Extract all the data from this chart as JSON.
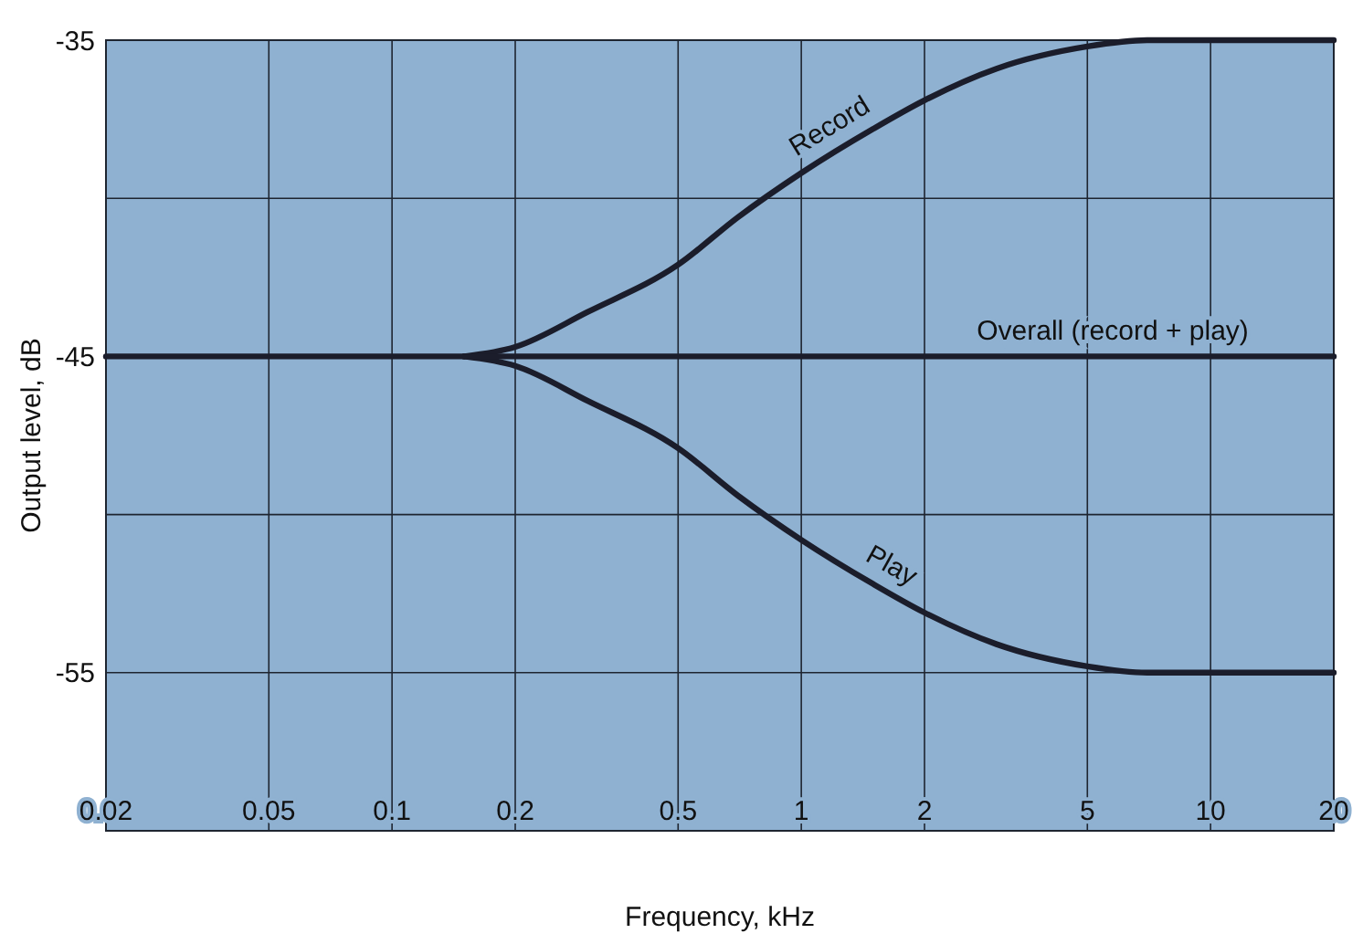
{
  "chart_data": {
    "type": "line",
    "xlabel": "Frequency, kHz",
    "ylabel": "Output level, dB",
    "log": "x",
    "grid": true,
    "marker": "none",
    "line_style": "solid",
    "xlim": [
      0.02,
      20
    ],
    "ylim": [
      -60,
      -35
    ],
    "xticks": [
      0.02,
      0.05,
      0.1,
      0.2,
      0.5,
      1,
      2,
      5,
      10,
      20
    ],
    "yticks": [
      {
        "value": -60,
        "label": null
      },
      -55,
      {
        "value": -50,
        "label": null
      },
      -45,
      {
        "value": -40,
        "label": null
      },
      -35
    ],
    "series": [
      {
        "name": "Record",
        "color": "#1b1d2b",
        "x": [
          0.15,
          0.2,
          0.3,
          0.5,
          0.7,
          1,
          1.5,
          2,
          3,
          5,
          7,
          10,
          20
        ],
        "values": [
          -45,
          -44.7,
          -43.6,
          -42.1,
          -40.6,
          -39.2,
          -37.8,
          -36.9,
          -35.9,
          -35.2,
          -35,
          -35,
          -35
        ]
      },
      {
        "name": "Overall (record + play)",
        "color": "#1b1d2b",
        "x": [
          0.02,
          20
        ],
        "values": [
          -45,
          -45
        ]
      },
      {
        "name": "Play",
        "color": "#1b1d2b",
        "x": [
          0.15,
          0.2,
          0.3,
          0.5,
          0.7,
          1,
          1.5,
          2,
          3,
          5,
          7,
          10,
          20
        ],
        "values": [
          -45,
          -45.3,
          -46.4,
          -47.9,
          -49.4,
          -50.8,
          -52.2,
          -53.1,
          -54.1,
          -54.8,
          -55,
          -55,
          -55
        ]
      }
    ]
  }
}
